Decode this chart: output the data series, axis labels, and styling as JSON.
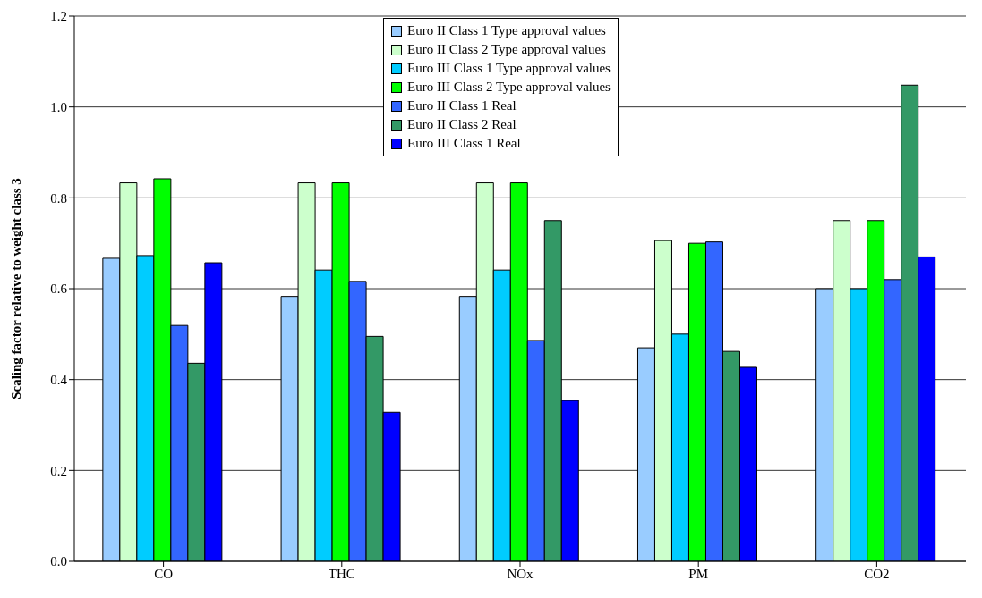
{
  "chart_data": {
    "type": "bar",
    "ylabel": "Scaling factor relative to weight class 3",
    "categories": [
      "CO",
      "THC",
      "NOx",
      "PM",
      "CO2"
    ],
    "series": [
      {
        "name": "Euro II Class 1 Type approval values",
        "color": "#99ccff",
        "values": [
          0.667,
          0.583,
          0.583,
          0.47,
          0.6
        ]
      },
      {
        "name": "Euro II Class 2 Type approval values",
        "color": "#ccffcc",
        "values": [
          0.833,
          0.833,
          0.833,
          0.706,
          0.75
        ]
      },
      {
        "name": "Euro III Class 1 Type approval values",
        "color": "#00ccff",
        "values": [
          0.673,
          0.641,
          0.641,
          0.5,
          0.6
        ]
      },
      {
        "name": "Euro III Class 2 Type approval values",
        "color": "#00ff00",
        "values": [
          0.842,
          0.833,
          0.833,
          0.7,
          0.75
        ]
      },
      {
        "name": "Euro II Class 1 Real",
        "color": "#3366ff",
        "values": [
          0.519,
          0.616,
          0.486,
          0.703,
          0.62
        ]
      },
      {
        "name": "Euro II Class 2 Real",
        "color": "#339966",
        "values": [
          0.436,
          0.495,
          0.75,
          0.462,
          1.048
        ]
      },
      {
        "name": "Euro III Class 1 Real",
        "color": "#0000ff",
        "values": [
          0.657,
          0.328,
          0.354,
          0.427,
          0.67
        ]
      }
    ],
    "ylim": [
      0,
      1.2
    ],
    "yticks": [
      {
        "value": 0,
        "label": "0.0"
      },
      0.2,
      0.4,
      0.6,
      0.8,
      {
        "value": 1,
        "label": "1.0"
      },
      1.2
    ],
    "grid": "y",
    "legend": "top"
  }
}
